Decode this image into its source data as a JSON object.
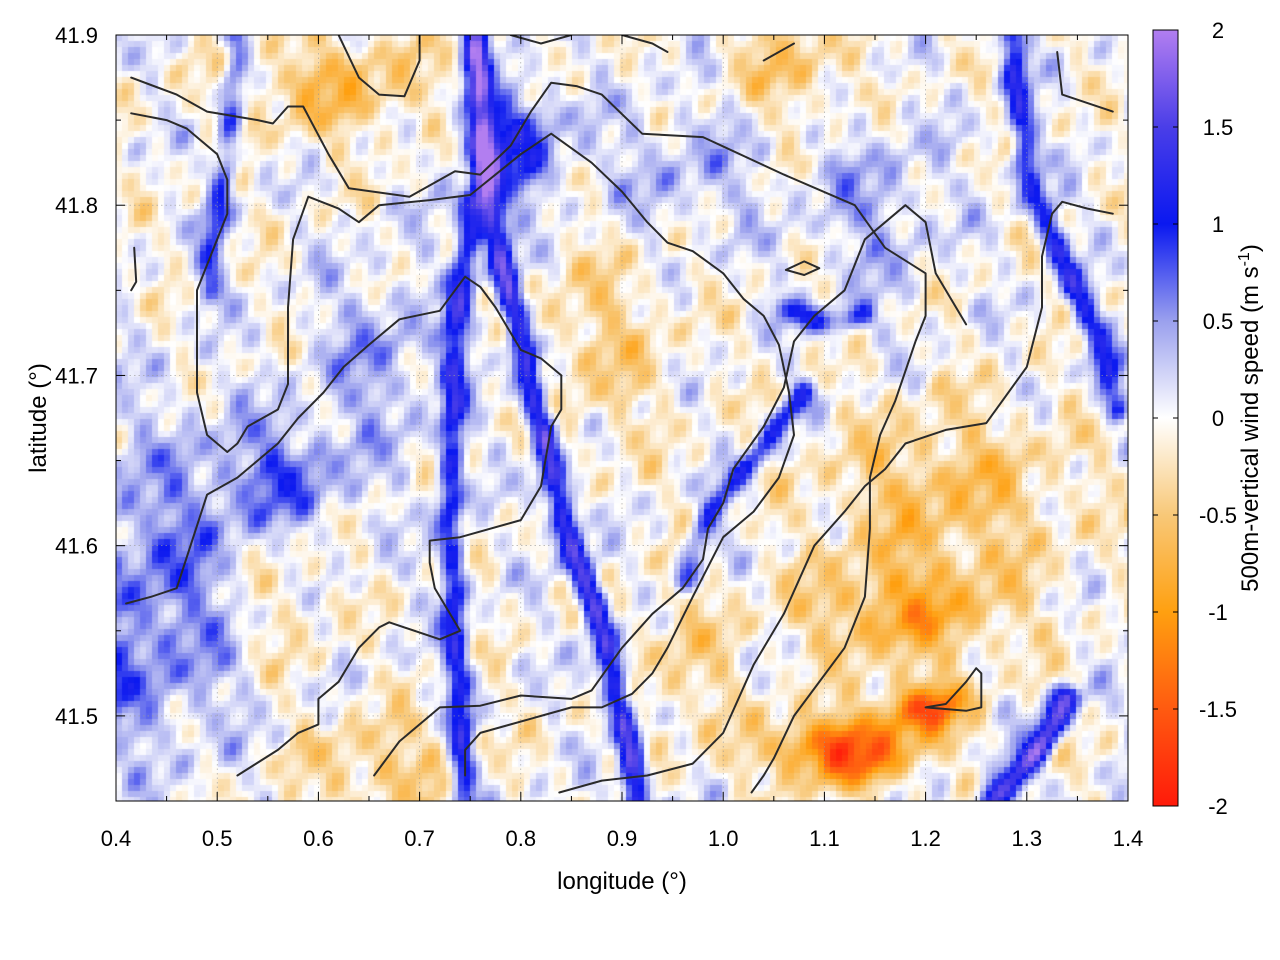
{
  "chart_data": {
    "type": "heatmap",
    "title": "",
    "xlabel": "longitude (°)",
    "ylabel": "latitude (°)",
    "xlim": [
      0.4,
      1.4
    ],
    "ylim": [
      41.45,
      41.9
    ],
    "xticks": [
      0.4,
      0.5,
      0.6,
      0.7,
      0.8,
      0.9,
      1.0,
      1.1,
      1.2,
      1.3,
      1.4
    ],
    "xtick_labels": [
      "0.4",
      "0.5",
      "0.6",
      "0.7",
      "0.8",
      "0.9",
      "1.0",
      "1.1",
      "1.2",
      "1.3",
      "1.4"
    ],
    "yticks": [
      41.5,
      41.6,
      41.7,
      41.8,
      41.9
    ],
    "ytick_labels": [
      "41.5",
      "41.6",
      "41.7",
      "41.8",
      "41.9"
    ],
    "grid": true,
    "colorbar": {
      "label_main": "500m-vertical wind speed (m s",
      "label_sup": "-1",
      "label_end": ")",
      "range": [
        -2,
        2
      ],
      "ticks": [
        2,
        1.5,
        1,
        0.5,
        0,
        -0.5,
        -1,
        -1.5,
        -2
      ],
      "tick_labels": [
        "2",
        "1.5",
        "1",
        "0.5",
        "0",
        "-0.5",
        "-1",
        "-1.5",
        "-2"
      ],
      "palette": [
        {
          "v": -2,
          "color": "#ff1a0a"
        },
        {
          "v": -1.5,
          "color": "#ff5a10"
        },
        {
          "v": -1,
          "color": "#ffa010"
        },
        {
          "v": -0.5,
          "color": "#f8c878"
        },
        {
          "v": 0,
          "color": "#ffffff"
        },
        {
          "v": 0.5,
          "color": "#9aa0ee"
        },
        {
          "v": 1,
          "color": "#0a18f0"
        },
        {
          "v": 1.5,
          "color": "#4a3ee8"
        },
        {
          "v": 2,
          "color": "#b27ef0"
        }
      ]
    },
    "features": {
      "jets": [
        {
          "points": [
            [
              0.755,
              41.9
            ],
            [
              0.762,
              41.84
            ],
            [
              0.768,
              41.8
            ],
            [
              0.8,
              41.72
            ],
            [
              0.84,
              41.62
            ],
            [
              0.875,
              41.56
            ],
            [
              0.905,
              41.49
            ],
            [
              0.915,
              41.45
            ]
          ],
          "value": 1.6
        },
        {
          "points": [
            [
              0.752,
              41.8
            ],
            [
              0.735,
              41.72
            ],
            [
              0.73,
              41.62
            ],
            [
              0.735,
              41.55
            ],
            [
              0.745,
              41.45
            ]
          ],
          "value": 1.1
        },
        {
          "points": [
            [
              0.52,
              41.9
            ],
            [
              0.508,
              41.82
            ],
            [
              0.49,
              41.75
            ]
          ],
          "value": 0.8
        },
        {
          "points": [
            [
              1.285,
              41.9
            ],
            [
              1.3,
              41.82
            ],
            [
              1.34,
              41.76
            ],
            [
              1.37,
              41.72
            ],
            [
              1.39,
              41.68
            ]
          ],
          "value": 1.1
        },
        {
          "points": [
            [
              1.265,
              41.45
            ],
            [
              1.31,
              41.48
            ],
            [
              1.34,
              41.51
            ]
          ],
          "value": 1.7
        },
        {
          "points": [
            [
              1.08,
              41.69
            ],
            [
              1.03,
              41.65
            ],
            [
              0.99,
              41.62
            ],
            [
              0.96,
              41.58
            ]
          ],
          "value": 0.9
        },
        {
          "points": [
            [
              1.06,
              41.74
            ],
            [
              1.1,
              41.73
            ],
            [
              1.14,
              41.735
            ]
          ],
          "value": 0.8
        }
      ],
      "blobs": [
        {
          "c": [
            0.79,
            41.835
          ],
          "r": [
            0.05,
            0.035
          ],
          "value": 1.0
        },
        {
          "c": [
            0.46,
            41.59
          ],
          "r": [
            0.12,
            0.08
          ],
          "value": 0.6
        },
        {
          "c": [
            0.57,
            41.64
          ],
          "r": [
            0.06,
            0.03
          ],
          "value": 0.6
        },
        {
          "c": [
            0.66,
            41.71
          ],
          "r": [
            0.06,
            0.05
          ],
          "value": 0.45
        },
        {
          "c": [
            0.35,
            41.52
          ],
          "r": [
            0.12,
            0.05
          ],
          "value": 0.5
        },
        {
          "c": [
            0.96,
            41.82
          ],
          "r": [
            0.08,
            0.04
          ],
          "value": 0.35
        },
        {
          "c": [
            1.15,
            41.8
          ],
          "r": [
            0.06,
            0.05
          ],
          "value": 0.4
        },
        {
          "c": [
            1.12,
            41.48
          ],
          "r": [
            0.07,
            0.02
          ],
          "value": -1.6
        },
        {
          "c": [
            1.2,
            41.505
          ],
          "r": [
            0.04,
            0.015
          ],
          "value": -1.4
        },
        {
          "c": [
            1.18,
            41.56
          ],
          "r": [
            0.1,
            0.03
          ],
          "value": -0.8
        },
        {
          "c": [
            1.22,
            41.63
          ],
          "r": [
            0.12,
            0.05
          ],
          "value": -0.6
        },
        {
          "c": [
            0.88,
            41.72
          ],
          "r": [
            0.07,
            0.06
          ],
          "value": -0.4
        },
        {
          "c": [
            0.62,
            41.87
          ],
          "r": [
            0.1,
            0.03
          ],
          "value": -0.6
        },
        {
          "c": [
            0.56,
            41.57
          ],
          "r": [
            0.06,
            0.05
          ],
          "value": -0.45
        },
        {
          "c": [
            0.66,
            41.47
          ],
          "r": [
            0.08,
            0.03
          ],
          "value": -0.5
        },
        {
          "c": [
            1.07,
            41.88
          ],
          "r": [
            0.06,
            0.03
          ],
          "value": -0.5
        },
        {
          "c": [
            0.96,
            41.53
          ],
          "r": [
            0.06,
            0.05
          ],
          "value": -0.35
        }
      ]
    },
    "contours": [
      [
        [
          0.415,
          41.875
        ],
        [
          0.46,
          41.865
        ],
        [
          0.49,
          41.855
        ],
        [
          0.54,
          41.85
        ],
        [
          0.555,
          41.848
        ],
        [
          0.57,
          41.858
        ],
        [
          0.585,
          41.858
        ],
        [
          0.61,
          41.83
        ],
        [
          0.63,
          41.81
        ],
        [
          0.69,
          41.805
        ],
        [
          0.735,
          41.82
        ],
        [
          0.76,
          41.818
        ],
        [
          0.79,
          41.835
        ],
        [
          0.81,
          41.855
        ],
        [
          0.83,
          41.872
        ],
        [
          0.855,
          41.87
        ],
        [
          0.88,
          41.865
        ],
        [
          0.92,
          41.842
        ],
        [
          0.98,
          41.84
        ],
        [
          1.06,
          41.818
        ],
        [
          1.13,
          41.8
        ],
        [
          1.16,
          41.775
        ],
        [
          1.2,
          41.76
        ],
        [
          1.2,
          41.735
        ],
        [
          1.19,
          41.72
        ],
        [
          1.17,
          41.685
        ],
        [
          1.155,
          41.665
        ],
        [
          1.145,
          41.64
        ],
        [
          1.145,
          41.61
        ],
        [
          1.14,
          41.57
        ],
        [
          1.12,
          41.54
        ],
        [
          1.07,
          41.5
        ],
        [
          1.05,
          41.475
        ],
        [
          1.04,
          41.465
        ],
        [
          1.028,
          41.455
        ]
      ],
      [
        [
          0.415,
          41.854
        ],
        [
          0.45,
          41.85
        ],
        [
          0.47,
          41.845
        ],
        [
          0.5,
          41.83
        ],
        [
          0.51,
          41.815
        ],
        [
          0.51,
          41.795
        ],
        [
          0.48,
          41.75
        ],
        [
          0.48,
          41.72
        ],
        [
          0.48,
          41.69
        ],
        [
          0.49,
          41.665
        ],
        [
          0.51,
          41.655
        ],
        [
          0.52,
          41.66
        ],
        [
          0.53,
          41.67
        ],
        [
          0.56,
          41.68
        ],
        [
          0.57,
          41.695
        ],
        [
          0.57,
          41.74
        ],
        [
          0.575,
          41.78
        ],
        [
          0.59,
          41.805
        ],
        [
          0.62,
          41.798
        ],
        [
          0.64,
          41.79
        ],
        [
          0.66,
          41.8
        ],
        [
          0.71,
          41.803
        ],
        [
          0.75,
          41.806
        ],
        [
          0.8,
          41.83
        ],
        [
          0.83,
          41.842
        ],
        [
          0.87,
          41.825
        ],
        [
          0.9,
          41.808
        ],
        [
          0.925,
          41.79
        ],
        [
          0.945,
          41.778
        ],
        [
          0.97,
          41.773
        ],
        [
          1.0,
          41.76
        ],
        [
          1.02,
          41.745
        ],
        [
          1.04,
          41.735
        ],
        [
          1.055,
          41.718
        ],
        [
          1.065,
          41.69
        ],
        [
          1.07,
          41.665
        ],
        [
          1.055,
          41.64
        ],
        [
          1.03,
          41.62
        ],
        [
          1.0,
          41.605
        ],
        [
          0.97,
          41.57
        ],
        [
          0.945,
          41.54
        ],
        [
          0.93,
          41.525
        ],
        [
          0.91,
          41.513
        ],
        [
          0.88,
          41.505
        ],
        [
          0.85,
          41.505
        ],
        [
          0.82,
          41.5
        ],
        [
          0.79,
          41.495
        ],
        [
          0.76,
          41.49
        ],
        [
          0.745,
          41.48
        ],
        [
          0.745,
          41.465
        ]
      ],
      [
        [
          0.41,
          41.566
        ],
        [
          0.435,
          41.57
        ],
        [
          0.46,
          41.575
        ],
        [
          0.49,
          41.63
        ],
        [
          0.52,
          41.64
        ],
        [
          0.56,
          41.66
        ],
        [
          0.58,
          41.675
        ],
        [
          0.605,
          41.69
        ],
        [
          0.625,
          41.705
        ],
        [
          0.65,
          41.718
        ],
        [
          0.68,
          41.733
        ],
        [
          0.72,
          41.738
        ],
        [
          0.745,
          41.758
        ],
        [
          0.76,
          41.752
        ],
        [
          0.775,
          41.74
        ],
        [
          0.8,
          41.715
        ],
        [
          0.82,
          41.71
        ],
        [
          0.84,
          41.7
        ],
        [
          0.84,
          41.68
        ],
        [
          0.83,
          41.67
        ],
        [
          0.82,
          41.635
        ],
        [
          0.8,
          41.615
        ],
        [
          0.74,
          41.605
        ],
        [
          0.71,
          41.603
        ],
        [
          0.71,
          41.59
        ],
        [
          0.715,
          41.575
        ],
        [
          0.73,
          41.56
        ],
        [
          0.74,
          41.55
        ],
        [
          0.72,
          41.545
        ],
        [
          0.67,
          41.555
        ],
        [
          0.66,
          41.552
        ],
        [
          0.64,
          41.54
        ],
        [
          0.62,
          41.52
        ],
        [
          0.6,
          41.51
        ],
        [
          0.6,
          41.495
        ],
        [
          0.58,
          41.49
        ],
        [
          0.56,
          41.48
        ],
        [
          0.52,
          41.465
        ]
      ],
      [
        [
          0.655,
          41.465
        ],
        [
          0.68,
          41.485
        ],
        [
          0.72,
          41.505
        ],
        [
          0.76,
          41.506
        ],
        [
          0.8,
          41.512
        ],
        [
          0.85,
          41.51
        ],
        [
          0.87,
          41.515
        ],
        [
          0.9,
          41.54
        ],
        [
          0.93,
          41.56
        ],
        [
          0.96,
          41.575
        ],
        [
          0.98,
          41.592
        ],
        [
          0.985,
          41.61
        ],
        [
          1.0,
          41.625
        ],
        [
          1.01,
          41.645
        ],
        [
          1.04,
          41.67
        ],
        [
          1.06,
          41.693
        ],
        [
          1.07,
          41.72
        ],
        [
          1.09,
          41.735
        ],
        [
          1.12,
          41.75
        ],
        [
          1.14,
          41.78
        ],
        [
          1.18,
          41.8
        ],
        [
          1.2,
          41.79
        ],
        [
          1.21,
          41.76
        ],
        [
          1.23,
          41.74
        ],
        [
          1.24,
          41.73
        ]
      ],
      [
        [
          0.838,
          41.455
        ],
        [
          0.88,
          41.462
        ],
        [
          0.925,
          41.465
        ],
        [
          0.97,
          41.472
        ],
        [
          1.0,
          41.49
        ],
        [
          1.03,
          41.53
        ],
        [
          1.06,
          41.56
        ],
        [
          1.09,
          41.6
        ],
        [
          1.12,
          41.62
        ],
        [
          1.14,
          41.635
        ],
        [
          1.16,
          41.645
        ],
        [
          1.18,
          41.66
        ],
        [
          1.22,
          41.668
        ],
        [
          1.26,
          41.672
        ],
        [
          1.3,
          41.705
        ],
        [
          1.315,
          41.74
        ],
        [
          1.315,
          41.77
        ],
        [
          1.325,
          41.795
        ],
        [
          1.335,
          41.802
        ],
        [
          1.36,
          41.798
        ],
        [
          1.385,
          41.795
        ]
      ],
      [
        [
          1.062,
          41.762
        ],
        [
          1.08,
          41.759
        ],
        [
          1.095,
          41.763
        ],
        [
          1.08,
          41.767
        ],
        [
          1.062,
          41.762
        ]
      ],
      [
        [
          1.2,
          41.505
        ],
        [
          1.22,
          41.507
        ],
        [
          1.24,
          41.52
        ],
        [
          1.25,
          41.528
        ],
        [
          1.255,
          41.525
        ],
        [
          1.255,
          41.505
        ],
        [
          1.24,
          41.503
        ],
        [
          1.2,
          41.505
        ]
      ],
      [
        [
          0.62,
          41.9
        ],
        [
          0.64,
          41.875
        ],
        [
          0.66,
          41.865
        ],
        [
          0.685,
          41.864
        ],
        [
          0.7,
          41.885
        ],
        [
          0.7,
          41.9
        ]
      ],
      [
        [
          0.79,
          41.9
        ],
        [
          0.82,
          41.895
        ],
        [
          0.85,
          41.9
        ]
      ],
      [
        [
          0.9,
          41.9
        ],
        [
          0.93,
          41.895
        ],
        [
          0.945,
          41.89
        ]
      ],
      [
        [
          1.04,
          41.885
        ],
        [
          1.07,
          41.895
        ]
      ],
      [
        [
          1.33,
          41.89
        ],
        [
          1.335,
          41.865
        ],
        [
          1.385,
          41.855
        ]
      ],
      [
        [
          0.418,
          41.775
        ],
        [
          0.42,
          41.755
        ],
        [
          0.415,
          41.75
        ]
      ]
    ]
  }
}
